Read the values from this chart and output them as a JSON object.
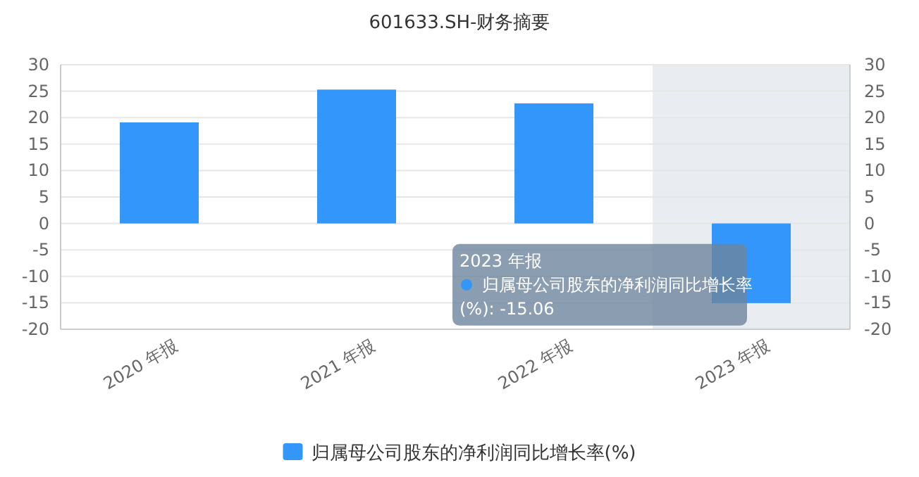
{
  "chart_data": {
    "type": "bar",
    "title": "601633.SH-财务摘要",
    "categories": [
      "2020 年报",
      "2021 年报",
      "2022 年报",
      "2023 年报"
    ],
    "series": [
      {
        "name": "归属母公司股东的净利润同比增长率(%)",
        "color": "#3296fa",
        "values": [
          19.1,
          25.3,
          22.7,
          -15.06
        ]
      }
    ],
    "ylim": [
      -20,
      30
    ],
    "yticks": [
      -20,
      -15,
      -10,
      -5,
      0,
      5,
      10,
      15,
      20,
      25,
      30
    ],
    "y2lim": [
      -20,
      30
    ],
    "y2ticks": [
      -20,
      -15,
      -10,
      -5,
      0,
      5,
      10,
      15,
      20,
      25,
      30
    ],
    "annotations": [
      "2023 年报",
      {
        "text": "归属母公司股东的净利润同比增长率(%): -15.06",
        "x": "2023 年报",
        "y": -15.06
      }
    ],
    "grid": "y",
    "legend": "bottom"
  }
}
